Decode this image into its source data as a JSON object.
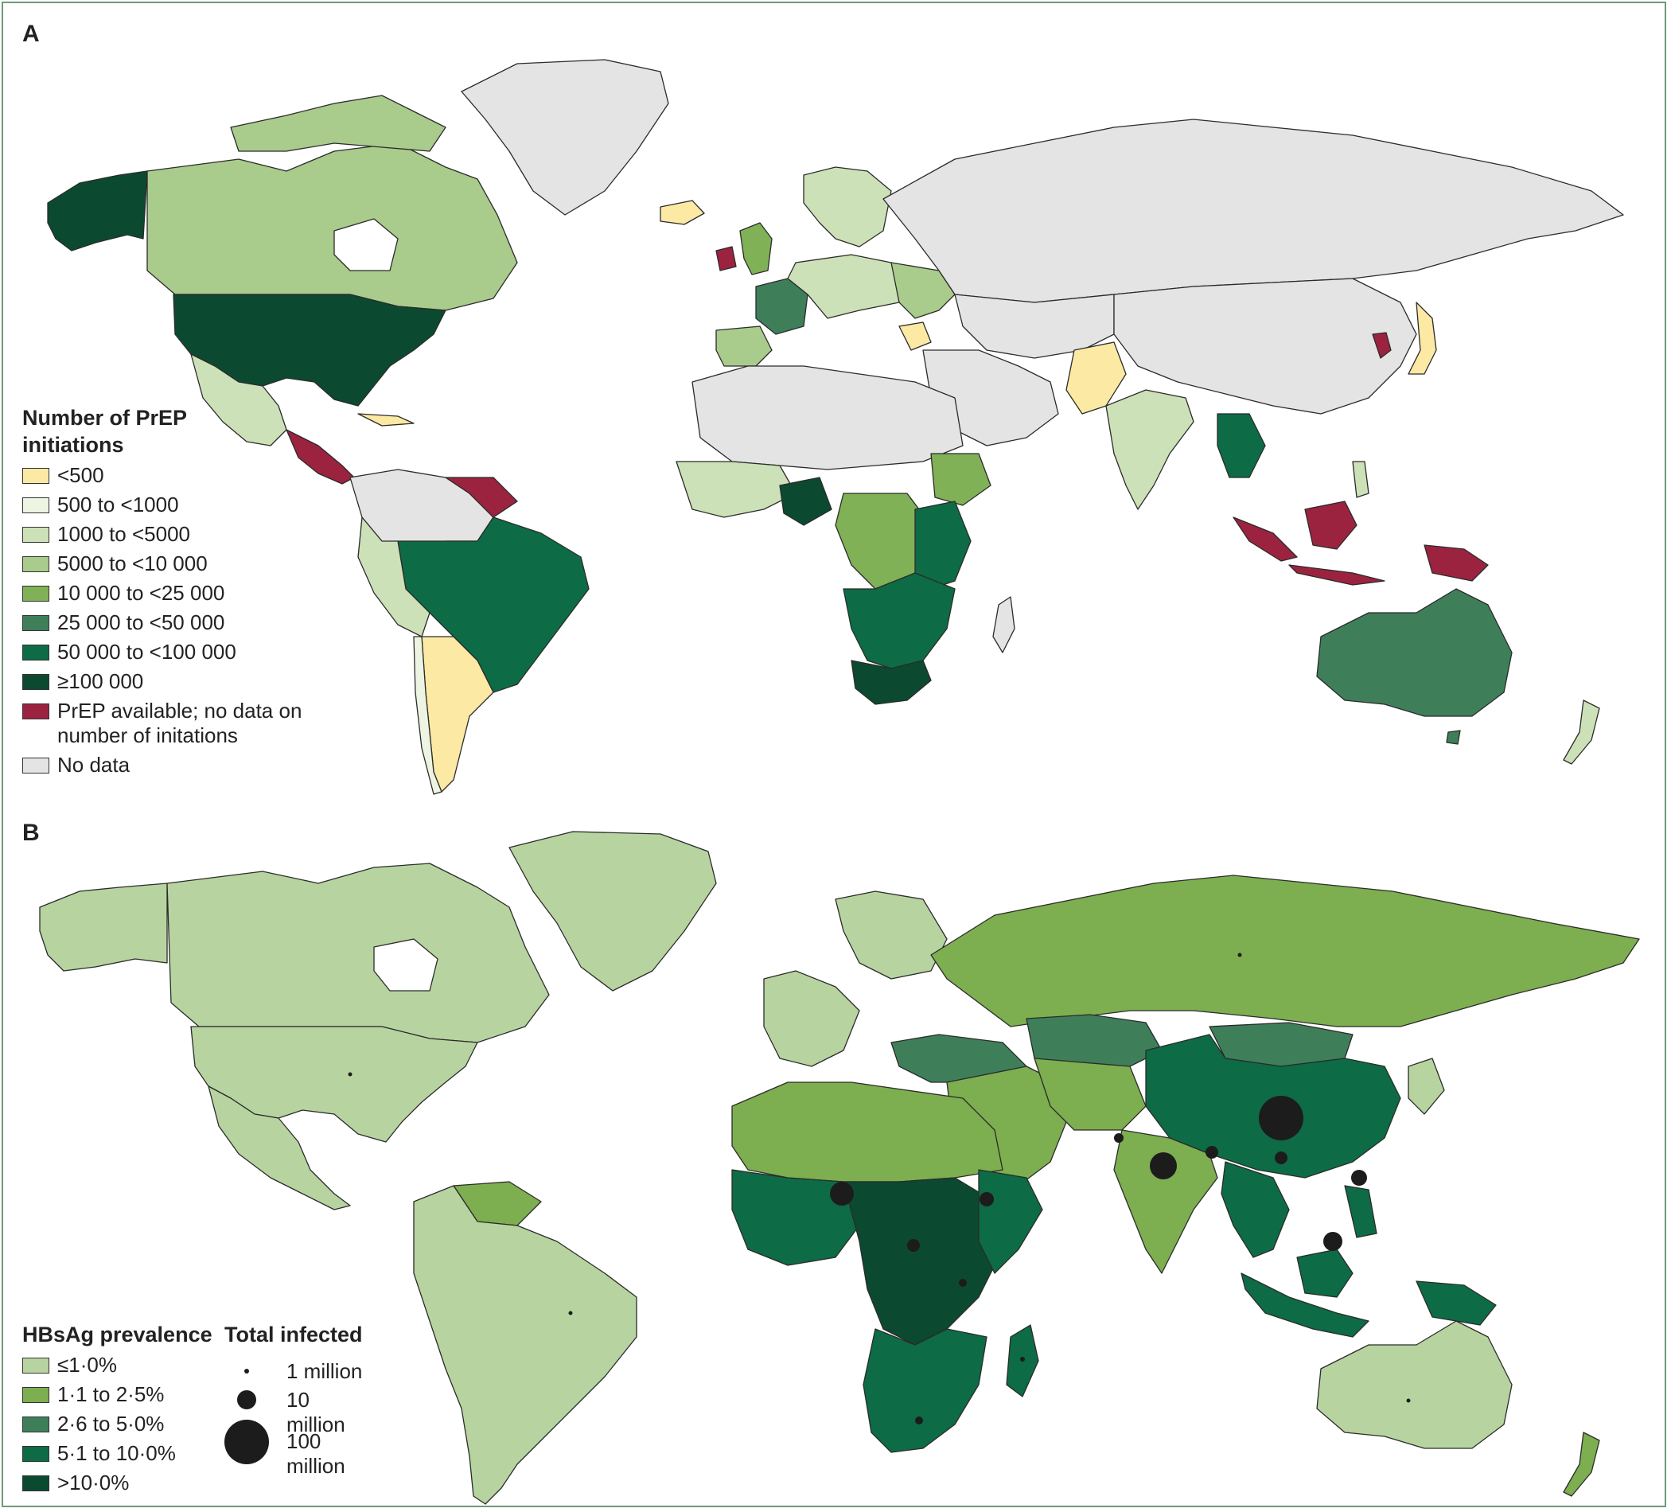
{
  "panel_a": {
    "letter": "A",
    "legend_title_lines": [
      "Number of PrEP",
      "initiations"
    ],
    "legend": [
      {
        "label": "<500",
        "color": "#fce9a3"
      },
      {
        "label": "500 to <1000",
        "color": "#eef4e2"
      },
      {
        "label": "1000 to <5000",
        "color": "#cde1b8"
      },
      {
        "label": "5000 to <10 000",
        "color": "#a9cb8b"
      },
      {
        "label": "10 000 to <25 000",
        "color": "#80b156"
      },
      {
        "label": "25 000 to <50 000",
        "color": "#3e7f5a"
      },
      {
        "label": "50 000 to <100 000",
        "color": "#0d6b46"
      },
      {
        "label": "≥100 000",
        "color": "#0b4a30"
      },
      {
        "label": "PrEP available; no data on number of initations",
        "color": "#9b2340"
      },
      {
        "label": "No data",
        "color": "#e3e4e3"
      }
    ]
  },
  "panel_b": {
    "letter": "B",
    "legend_title": "HBsAg prevalence",
    "legend": [
      {
        "label": "≤1·0%",
        "color": "#b7d4a0"
      },
      {
        "label": "1·1 to 2·5%",
        "color": "#7dae4f"
      },
      {
        "label": "2·6 to 5·0%",
        "color": "#3e7f5a"
      },
      {
        "label": "5·1 to 10·0%",
        "color": "#0d6b46"
      },
      {
        "label": ">10·0%",
        "color": "#0b4a30"
      }
    ],
    "bubble_title": "Total infected",
    "bubbles": [
      {
        "label": "1 million",
        "value_millions": 1
      },
      {
        "label": "10 million",
        "value_millions": 10
      },
      {
        "label": "100 million",
        "value_millions": 100
      }
    ]
  }
}
